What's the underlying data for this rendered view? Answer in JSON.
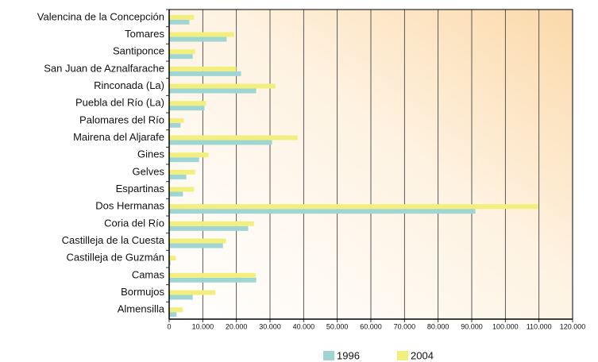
{
  "chart_data": {
    "type": "hbar",
    "categories": [
      "Valencina de la Concepción",
      "Tomares",
      "Santiponce",
      "San Juan de Aznalfarache",
      "Rinconada (La)",
      "Puebla del Río (La)",
      "Palomares del Río",
      "Mairena del Aljarafe",
      "Gines",
      "Gelves",
      "Espartinas",
      "Dos Hermanas",
      "Coria del Río",
      "Castilleja de la Cuesta",
      "Castilleja de Guzmán",
      "Camas",
      "Bormujos",
      "Almensilla"
    ],
    "series": [
      {
        "name": "1996",
        "color": "#9fd6d3",
        "values": [
          6000,
          17100,
          7000,
          21400,
          25900,
          10500,
          3400,
          30600,
          8900,
          5100,
          4100,
          91100,
          23500,
          16000,
          400,
          25900,
          7000,
          2200
        ]
      },
      {
        "name": "2004",
        "color": "#f3ef7e",
        "values": [
          7400,
          19300,
          7700,
          20000,
          31600,
          11000,
          4400,
          38200,
          11700,
          7700,
          7400,
          109800,
          25200,
          16900,
          2000,
          25700,
          13800,
          4100
        ]
      }
    ],
    "xlim": [
      0,
      120000
    ],
    "xticks": [
      0,
      {
        "value": 10000,
        "label": "10.000"
      },
      {
        "value": 20000,
        "label": "20.000"
      },
      {
        "value": 30000,
        "label": "30.000"
      },
      {
        "value": 40000,
        "label": "40.000"
      },
      {
        "value": 50000,
        "label": "50.000"
      },
      {
        "value": 60000,
        "label": "60.000"
      },
      {
        "value": 70000,
        "label": "70.000"
      },
      {
        "value": 80000,
        "label": "80.000"
      },
      {
        "value": 90000,
        "label": "90.000"
      },
      {
        "value": 100000,
        "label": "100.000"
      },
      {
        "value": 110000,
        "label": "110.000"
      },
      {
        "value": 120000,
        "label": "120.000"
      }
    ],
    "grid": true,
    "legend": "bottom"
  }
}
